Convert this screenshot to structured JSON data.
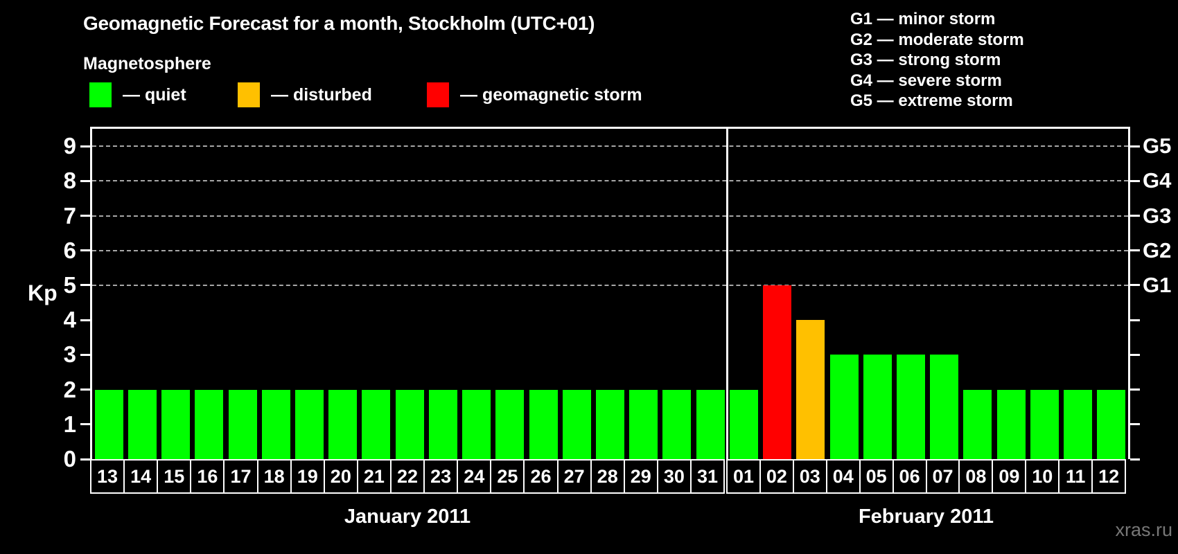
{
  "page": {
    "background": "#000000",
    "watermark": "xras.ru"
  },
  "header": {
    "title": "Geomagnetic Forecast for a month, Stockholm (UTC+01)"
  },
  "magnetosphere_legend": {
    "heading": "Magnetosphere",
    "items": [
      {
        "name": "quiet",
        "label": "— quiet",
        "color": "#00ff00"
      },
      {
        "name": "disturbed",
        "label": "— disturbed",
        "color": "#ffc000"
      },
      {
        "name": "storm",
        "label": "— geomagnetic storm",
        "color": "#ff0000"
      }
    ]
  },
  "g_scale_legend": {
    "lines": [
      "G1 — minor storm",
      "G2 — moderate storm",
      "G3 — strong storm",
      "G4 — severe storm",
      "G5 — extreme storm"
    ]
  },
  "chart_data": {
    "type": "bar",
    "title": "Geomagnetic Forecast for a month, Stockholm (UTC+01)",
    "ylabel": "Kp",
    "ylim": [
      0,
      9.5
    ],
    "y_ticks": [
      0,
      1,
      2,
      3,
      4,
      5,
      6,
      7,
      8,
      9
    ],
    "dashed_gridlines_at_kp": [
      5,
      6,
      7,
      8,
      9
    ],
    "grid": "dashed horizontal at storm levels only",
    "legend_position": "top",
    "right_axis_labels": [
      {
        "kp": 5,
        "label": "G1"
      },
      {
        "kp": 6,
        "label": "G2"
      },
      {
        "kp": 7,
        "label": "G3"
      },
      {
        "kp": 8,
        "label": "G4"
      },
      {
        "kp": 9,
        "label": "G5"
      }
    ],
    "state_colors": {
      "quiet": "#00ff00",
      "disturbed": "#ffc000",
      "storm": "#ff0000"
    },
    "months": [
      {
        "label": "January 2011",
        "days": [
          "13",
          "14",
          "15",
          "16",
          "17",
          "18",
          "19",
          "20",
          "21",
          "22",
          "23",
          "24",
          "25",
          "26",
          "27",
          "28",
          "29",
          "30",
          "31"
        ],
        "kp": [
          2,
          2,
          2,
          2,
          2,
          2,
          2,
          2,
          2,
          2,
          2,
          2,
          2,
          2,
          2,
          2,
          2,
          2,
          2
        ],
        "state": [
          "quiet",
          "quiet",
          "quiet",
          "quiet",
          "quiet",
          "quiet",
          "quiet",
          "quiet",
          "quiet",
          "quiet",
          "quiet",
          "quiet",
          "quiet",
          "quiet",
          "quiet",
          "quiet",
          "quiet",
          "quiet",
          "quiet"
        ]
      },
      {
        "label": "February 2011",
        "days": [
          "01",
          "02",
          "03",
          "04",
          "05",
          "06",
          "07",
          "08",
          "09",
          "10",
          "11",
          "12"
        ],
        "kp": [
          2,
          5,
          4,
          3,
          3,
          3,
          3,
          2,
          2,
          2,
          2,
          2
        ],
        "state": [
          "quiet",
          "storm",
          "disturbed",
          "quiet",
          "quiet",
          "quiet",
          "quiet",
          "quiet",
          "quiet",
          "quiet",
          "quiet",
          "quiet"
        ]
      }
    ]
  }
}
